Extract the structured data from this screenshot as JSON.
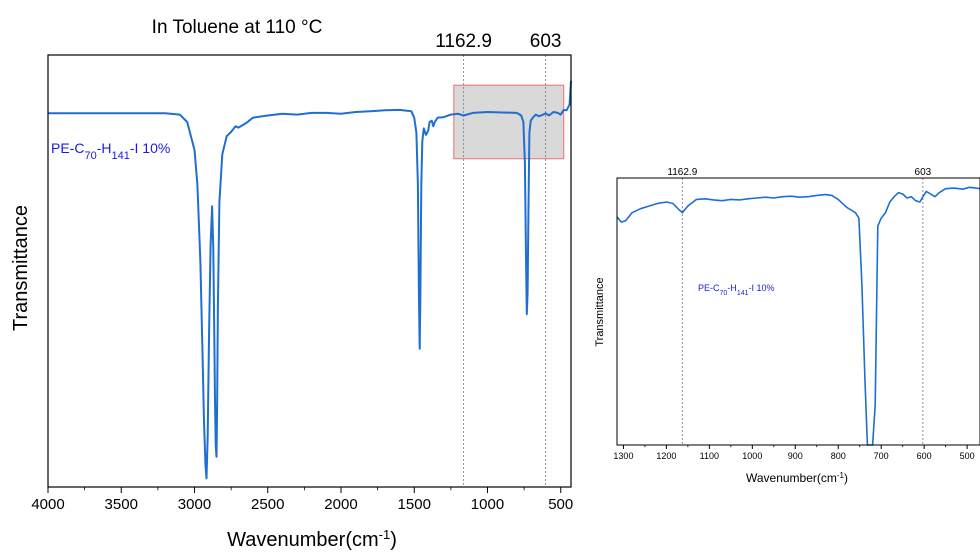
{
  "chart_data": [
    {
      "type": "line",
      "title": "In Toluene at 110 °C",
      "xlabel_main": "Wavenumber(cm",
      "xlabel_sup": "-1",
      "xlabel_end": ")",
      "ylabel": "Transmittance",
      "xlim": [
        4000,
        430
      ],
      "ylim": [
        0,
        1
      ],
      "reversed_x": true,
      "x_ticks": [
        4000,
        3500,
        3000,
        2500,
        2000,
        1500,
        1000,
        500
      ],
      "y_ticks": [],
      "grid": false,
      "series_label": {
        "pre": "PE-C",
        "sub1": "70",
        "mid": "-H",
        "sub2": "141",
        "post": "-I 10%"
      },
      "reference_lines": [
        {
          "x": 1162.9,
          "label": "1162.9"
        },
        {
          "x": 603,
          "label": "603"
        }
      ],
      "zoom_region": {
        "x": [
          1230,
          480
        ],
        "y": [
          0.76,
          0.93
        ]
      },
      "series": [
        {
          "color": "#1f6fd1",
          "x": [
            4000,
            3500,
            3200,
            3100,
            3050,
            3000,
            2980,
            2960,
            2945,
            2935,
            2925,
            2918,
            2910,
            2900,
            2890,
            2880,
            2872,
            2865,
            2860,
            2855,
            2850,
            2846,
            2840,
            2830,
            2810,
            2780,
            2750,
            2720,
            2700,
            2650,
            2600,
            2500,
            2400,
            2300,
            2200,
            2100,
            2000,
            1900,
            1800,
            1700,
            1600,
            1520,
            1500,
            1485,
            1475,
            1468,
            1463,
            1458,
            1452,
            1445,
            1435,
            1420,
            1405,
            1395,
            1380,
            1370,
            1360,
            1340,
            1300,
            1250,
            1200,
            1162.9,
            1100,
            1000,
            900,
            800,
            770,
            755,
            745,
            738,
            732,
            726,
            720,
            714,
            705,
            690,
            670,
            650,
            620,
            603,
            580,
            550,
            520,
            500,
            480,
            460,
            440,
            430
          ],
          "y": [
            0.865,
            0.865,
            0.865,
            0.862,
            0.845,
            0.78,
            0.7,
            0.52,
            0.3,
            0.15,
            0.05,
            0.02,
            0.12,
            0.36,
            0.56,
            0.65,
            0.55,
            0.35,
            0.2,
            0.1,
            0.07,
            0.18,
            0.42,
            0.66,
            0.77,
            0.812,
            0.822,
            0.835,
            0.832,
            0.842,
            0.855,
            0.86,
            0.864,
            0.862,
            0.866,
            0.866,
            0.864,
            0.868,
            0.87,
            0.872,
            0.873,
            0.87,
            0.855,
            0.82,
            0.7,
            0.45,
            0.32,
            0.45,
            0.7,
            0.8,
            0.83,
            0.815,
            0.825,
            0.845,
            0.848,
            0.835,
            0.845,
            0.855,
            0.856,
            0.862,
            0.864,
            0.86,
            0.866,
            0.868,
            0.867,
            0.866,
            0.86,
            0.845,
            0.75,
            0.55,
            0.4,
            0.45,
            0.65,
            0.82,
            0.848,
            0.855,
            0.862,
            0.858,
            0.862,
            0.865,
            0.86,
            0.868,
            0.866,
            0.862,
            0.873,
            0.872,
            0.885,
            0.94
          ]
        }
      ]
    },
    {
      "type": "line",
      "title": "",
      "xlabel_main": "Wavenumber(cm",
      "xlabel_sup": "-1",
      "xlabel_end": ")",
      "ylabel": "Transmittance",
      "xlim": [
        1315,
        470
      ],
      "ylim": [
        0,
        1
      ],
      "reversed_x": true,
      "x_ticks": [
        1300,
        1200,
        1100,
        1000,
        900,
        800,
        700,
        600,
        500
      ],
      "x_tick_labels": [
        "1300",
        "1200",
        "1100",
        "1000",
        "900",
        "800",
        "700",
        "600",
        "500"
      ],
      "y_ticks": [],
      "grid": false,
      "series_label": {
        "pre": "PE-C",
        "sub1": "70",
        "mid": "-H",
        "sub2": "141",
        "post": "-I 10%"
      },
      "reference_lines": [
        {
          "x": 1162.9,
          "label": "1162.9"
        },
        {
          "x": 603,
          "label": "603"
        }
      ],
      "series": [
        {
          "color": "#1f6fd1",
          "x": [
            1315,
            1305,
            1295,
            1280,
            1260,
            1240,
            1220,
            1200,
            1185,
            1170,
            1162.9,
            1150,
            1130,
            1110,
            1090,
            1070,
            1050,
            1030,
            1010,
            990,
            970,
            950,
            930,
            910,
            890,
            870,
            850,
            830,
            815,
            800,
            790,
            780,
            770,
            760,
            752,
            745,
            738,
            732,
            726,
            720,
            714,
            708,
            700,
            690,
            680,
            670,
            660,
            650,
            640,
            630,
            620,
            610,
            603,
            595,
            585,
            575,
            565,
            550,
            530,
            510,
            495,
            480,
            470
          ],
          "y": [
            0.855,
            0.835,
            0.84,
            0.87,
            0.885,
            0.895,
            0.905,
            0.91,
            0.905,
            0.88,
            0.87,
            0.895,
            0.92,
            0.922,
            0.918,
            0.915,
            0.92,
            0.918,
            0.922,
            0.925,
            0.928,
            0.925,
            0.93,
            0.932,
            0.928,
            0.93,
            0.935,
            0.938,
            0.935,
            0.92,
            0.905,
            0.89,
            0.88,
            0.87,
            0.85,
            0.6,
            0.25,
            0.0,
            0.0,
            0.0,
            0.15,
            0.82,
            0.85,
            0.87,
            0.91,
            0.93,
            0.945,
            0.94,
            0.925,
            0.93,
            0.915,
            0.91,
            0.93,
            0.95,
            0.94,
            0.93,
            0.945,
            0.96,
            0.962,
            0.958,
            0.965,
            0.962,
            0.96
          ]
        }
      ]
    }
  ]
}
